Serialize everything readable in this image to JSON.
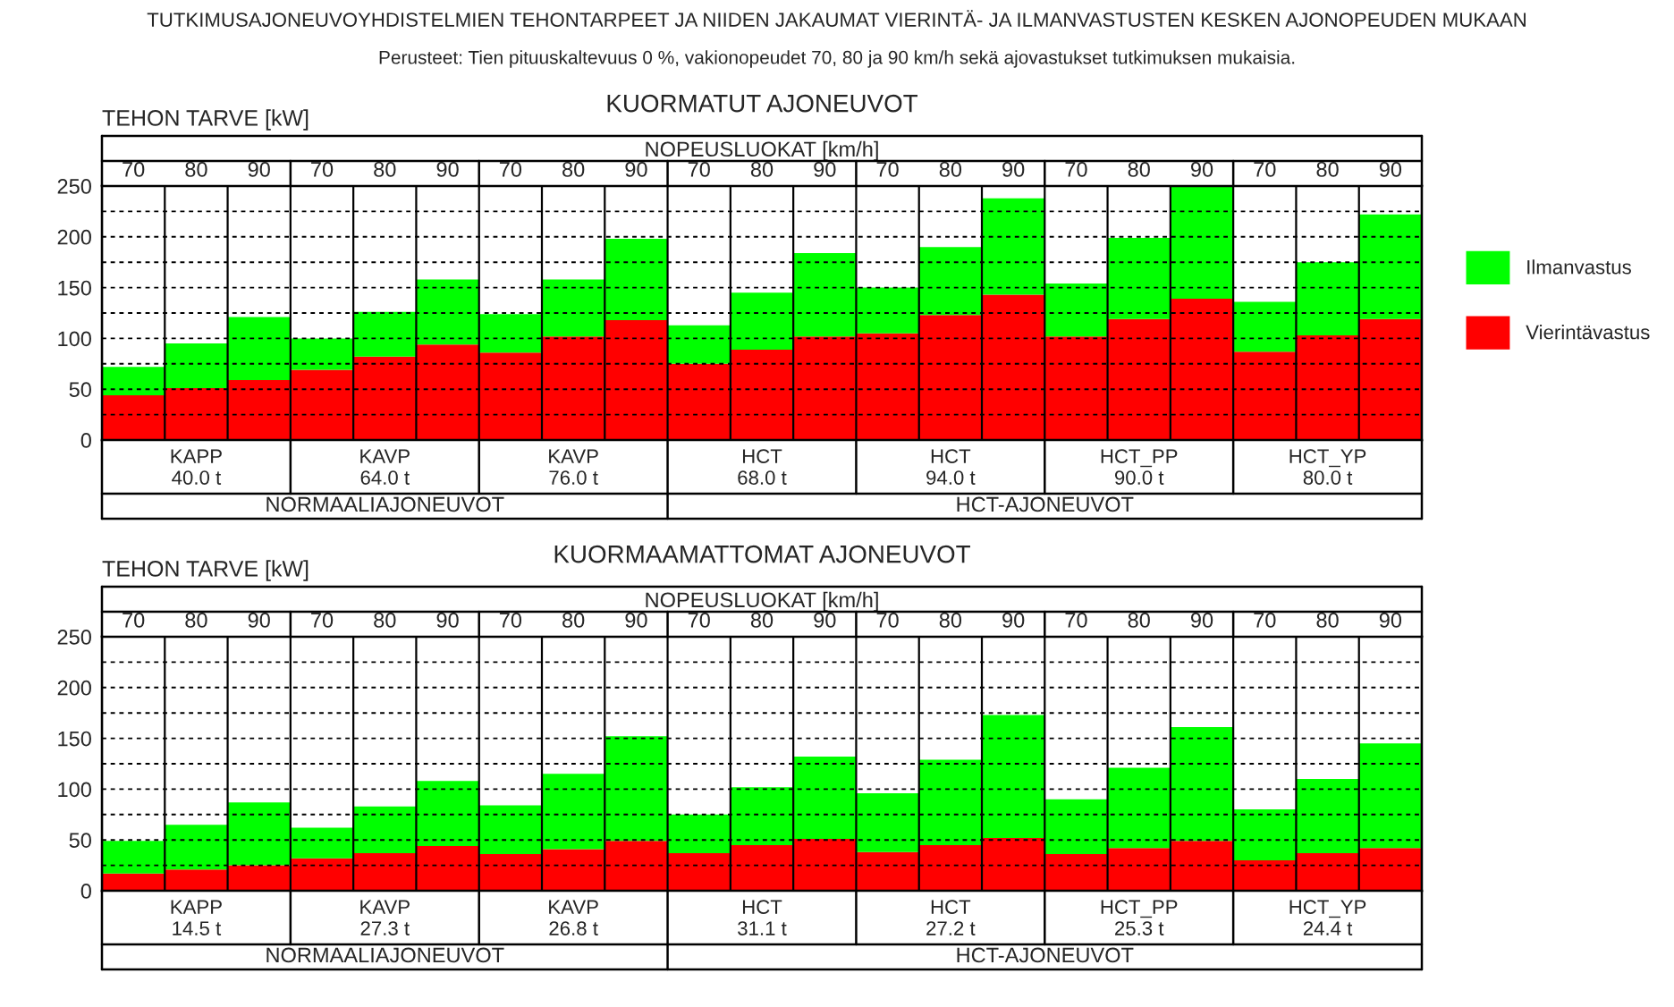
{
  "chart_data": [
    {
      "type": "bar",
      "title": "KUORMATUT AJONEUVOT",
      "ylabel": "TEHON TARVE [kW]",
      "xlabel": "NOPEUSLUOKAT [km/h]",
      "annotations": [
        "TUTKIMUSAJONEUVOYHDISTELMIEN TEHONTARPEET JA NIIDEN JAKAUMAT VIERINTÄ- JA ILMANVASTUSTEN KESKEN AJONOPEUDEN MUKAAN",
        "Perusteet: Tien pituuskaltevuus 0 %, vakionopeudet 70, 80 ja 90 km/h sekä ajovastukset tutkimuksen mukaisia.",
        "KAPP\n40.0 t",
        "KAVP\n64.0 t",
        "KAVP\n76.0 t",
        "HCT\n68.0 t",
        "HCT\n94.0 t",
        "HCT_PP\n90.0 t",
        "HCT_YP\n80.0 t",
        "NORMAALIAJONEUVOT",
        "HCT-AJONEUVOT"
      ],
      "categories": [
        "70",
        "80",
        "90",
        "70",
        "80",
        "90",
        "70",
        "80",
        "90",
        "70",
        "80",
        "90",
        "70",
        "80",
        "90",
        "70",
        "80",
        "90",
        "70",
        "80",
        "90"
      ],
      "stacked": true,
      "series": [
        {
          "name": "Vierintävastus",
          "color": "#ff0000",
          "values": [
            44,
            51,
            59,
            69,
            82,
            94,
            86,
            102,
            118,
            75,
            89,
            102,
            105,
            123,
            143,
            102,
            119,
            139,
            87,
            103,
            119
          ]
        },
        {
          "name": "Ilmanvastus",
          "color": "#00ff00",
          "values": [
            28,
            44,
            62,
            31,
            44,
            64,
            38,
            56,
            80,
            38,
            56,
            82,
            45,
            67,
            95,
            52,
            80,
            111,
            49,
            72,
            103
          ]
        }
      ],
      "ylim": [
        0,
        250
      ],
      "yticks": [
        0,
        {
          "value": 25,
          "label": null
        },
        50,
        {
          "value": 75,
          "label": null
        },
        100,
        {
          "value": 125,
          "label": null
        },
        150,
        {
          "value": 175,
          "label": null
        },
        200,
        {
          "value": 225,
          "label": null
        },
        250
      ],
      "grid": true,
      "legend": "right"
    },
    {
      "type": "bar",
      "title": "KUORMAAMATTOMAT AJONEUVOT",
      "ylabel": "TEHON TARVE [kW]",
      "xlabel": "NOPEUSLUOKAT [km/h]",
      "annotations": [
        "KAPP\n14.5 t",
        "KAVP\n27.3 t",
        "KAVP\n26.8 t",
        "HCT\n31.1 t",
        "HCT\n27.2 t",
        "HCT_PP\n25.3 t",
        "HCT_YP\n24.4 t",
        "NORMAALIAJONEUVOT",
        "HCT-AJONEUVOT"
      ],
      "categories": [
        "70",
        "80",
        "90",
        "70",
        "80",
        "90",
        "70",
        "80",
        "90",
        "70",
        "80",
        "90",
        "70",
        "80",
        "90",
        "70",
        "80",
        "90",
        "70",
        "80",
        "90"
      ],
      "stacked": true,
      "series": [
        {
          "color": "#ff0000",
          "values": [
            17,
            21,
            25,
            32,
            37,
            44,
            36,
            41,
            49,
            37,
            45,
            51,
            38,
            45,
            52,
            36,
            42,
            49,
            30,
            37,
            42
          ]
        },
        {
          "color": "#00ff00",
          "values": [
            32,
            44,
            62,
            30,
            46,
            64,
            48,
            74,
            103,
            38,
            57,
            81,
            58,
            84,
            121,
            54,
            79,
            112,
            50,
            73,
            103
          ]
        }
      ],
      "ylim": [
        0,
        250
      ],
      "yticks": [
        0,
        {
          "value": 25,
          "label": null
        },
        50,
        {
          "value": 75,
          "label": null
        },
        100,
        {
          "value": 125,
          "label": null
        },
        150,
        {
          "value": 175,
          "label": null
        },
        200,
        {
          "value": 225,
          "label": null
        },
        250
      ],
      "grid": true
    }
  ]
}
